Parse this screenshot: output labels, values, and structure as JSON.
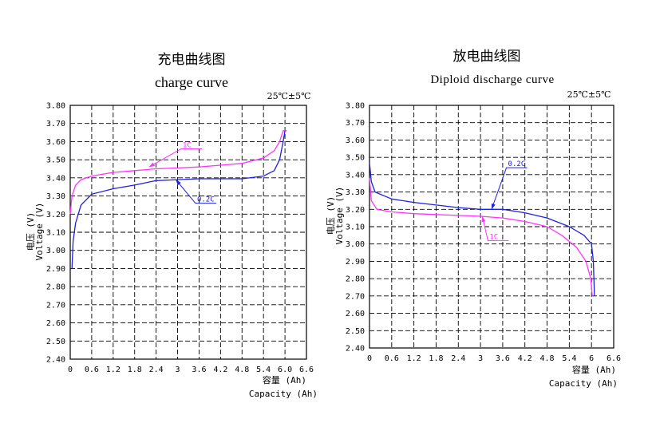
{
  "chart_data": [
    {
      "type": "line",
      "title": "充电曲线图",
      "subtitle": "charge curve",
      "condition": "25℃±5℃",
      "ylabel_cn": "电压 (V)",
      "ylabel_en": "Voltage (V)",
      "xlabel_cn": "容量 (Ah)",
      "xlabel_en": "Capacity (Ah)",
      "xlim": [
        0,
        6.6
      ],
      "ylim": [
        2.4,
        3.8
      ],
      "x_ticks": [
        0,
        0.6,
        1.2,
        1.8,
        2.4,
        3.0,
        3.6,
        4.2,
        4.8,
        5.4,
        6.0,
        6.6
      ],
      "x_tick_labels": [
        "0",
        "0.6",
        "1.2",
        "1.8",
        "2.4",
        "3",
        "3.6",
        "4.2",
        "4.8",
        "5.4",
        "6.0",
        "6.6"
      ],
      "y_ticks": [
        2.4,
        2.5,
        2.6,
        2.7,
        2.8,
        2.9,
        3.0,
        3.1,
        3.2,
        3.3,
        3.4,
        3.5,
        3.6,
        3.7,
        3.8
      ],
      "y_tick_labels": [
        "2.40",
        "2.50",
        "2.60",
        "2.70",
        "2.80",
        "2.90",
        "3.00",
        "3.10",
        "3.20",
        "3.30",
        "3.40",
        "3.50",
        "3.60",
        "3.70",
        "3.80"
      ],
      "grid": true,
      "series": [
        {
          "name": "1C",
          "color": "#ff33ff",
          "points": [
            [
              0.0,
              3.2
            ],
            [
              0.05,
              3.3
            ],
            [
              0.15,
              3.36
            ],
            [
              0.3,
              3.39
            ],
            [
              0.6,
              3.41
            ],
            [
              1.2,
              3.43
            ],
            [
              1.8,
              3.44
            ],
            [
              2.4,
              3.45
            ],
            [
              3.0,
              3.455
            ],
            [
              3.6,
              3.46
            ],
            [
              4.2,
              3.47
            ],
            [
              4.8,
              3.48
            ],
            [
              5.4,
              3.51
            ],
            [
              5.7,
              3.55
            ],
            [
              5.85,
              3.6
            ],
            [
              5.95,
              3.66
            ],
            [
              6.05,
              3.66
            ]
          ],
          "label_anchor": [
            2.2,
            3.46
          ],
          "label_pos": [
            3.1,
            3.56
          ]
        },
        {
          "name": "0.2C",
          "color": "#2020e0",
          "points": [
            [
              0.05,
              2.9
            ],
            [
              0.08,
              3.05
            ],
            [
              0.15,
              3.15
            ],
            [
              0.3,
              3.25
            ],
            [
              0.6,
              3.31
            ],
            [
              1.2,
              3.34
            ],
            [
              1.8,
              3.36
            ],
            [
              2.4,
              3.385
            ],
            [
              3.0,
              3.39
            ],
            [
              3.6,
              3.395
            ],
            [
              4.2,
              3.395
            ],
            [
              4.8,
              3.395
            ],
            [
              5.4,
              3.41
            ],
            [
              5.7,
              3.44
            ],
            [
              5.85,
              3.5
            ],
            [
              5.95,
              3.6
            ],
            [
              6.0,
              3.66
            ]
          ],
          "label_anchor": [
            2.95,
            3.39
          ],
          "label_pos": [
            3.5,
            3.26
          ]
        }
      ]
    },
    {
      "type": "line",
      "title": "放电曲线图",
      "subtitle": "Diploid discharge curve",
      "condition": "25℃±5℃",
      "ylabel_cn": "电压 (V)",
      "ylabel_en": "Voltage (V)",
      "xlabel_cn": "容量 (Ah)",
      "xlabel_en": "Capacity (Ah)",
      "xlim": [
        0,
        6.6
      ],
      "ylim": [
        2.4,
        3.8
      ],
      "x_ticks": [
        0,
        0.6,
        1.2,
        1.8,
        2.4,
        3.0,
        3.6,
        4.2,
        4.8,
        5.4,
        6.0,
        6.6
      ],
      "x_tick_labels": [
        "0",
        "0.6",
        "1.2",
        "1.8",
        "2.4",
        "3",
        "3.6",
        "4.2",
        "4.8",
        "5.4",
        "6",
        "6.6"
      ],
      "y_ticks": [
        2.4,
        2.5,
        2.6,
        2.7,
        2.8,
        2.9,
        3.0,
        3.1,
        3.2,
        3.3,
        3.4,
        3.5,
        3.6,
        3.7,
        3.8
      ],
      "y_tick_labels": [
        "2.40",
        "2.50",
        "2.60",
        "2.70",
        "2.80",
        "2.90",
        "3.00",
        "3.10",
        "3.20",
        "3.30",
        "3.40",
        "3.50",
        "3.60",
        "3.70",
        "3.80"
      ],
      "grid": true,
      "series": [
        {
          "name": "0.2C",
          "color": "#2020e0",
          "points": [
            [
              0.0,
              3.47
            ],
            [
              0.05,
              3.36
            ],
            [
              0.15,
              3.3
            ],
            [
              0.6,
              3.26
            ],
            [
              1.2,
              3.24
            ],
            [
              1.8,
              3.225
            ],
            [
              2.4,
              3.21
            ],
            [
              3.0,
              3.2
            ],
            [
              3.6,
              3.2
            ],
            [
              4.2,
              3.18
            ],
            [
              4.8,
              3.15
            ],
            [
              5.4,
              3.1
            ],
            [
              5.8,
              3.05
            ],
            [
              6.0,
              3.0
            ],
            [
              6.05,
              2.9
            ],
            [
              6.08,
              2.7
            ]
          ],
          "label_anchor": [
            3.3,
            3.2
          ],
          "label_pos": [
            3.7,
            3.44
          ]
        },
        {
          "name": "1C",
          "color": "#ff33ff",
          "points": [
            [
              0.0,
              3.38
            ],
            [
              0.05,
              3.25
            ],
            [
              0.2,
              3.2
            ],
            [
              0.6,
              3.185
            ],
            [
              1.2,
              3.175
            ],
            [
              1.8,
              3.17
            ],
            [
              2.4,
              3.165
            ],
            [
              3.0,
              3.16
            ],
            [
              3.6,
              3.15
            ],
            [
              4.2,
              3.13
            ],
            [
              4.8,
              3.1
            ],
            [
              5.2,
              3.05
            ],
            [
              5.6,
              2.98
            ],
            [
              5.85,
              2.9
            ],
            [
              5.98,
              2.8
            ],
            [
              6.02,
              2.7
            ]
          ],
          "label_anchor": [
            3.05,
            3.16
          ],
          "label_pos": [
            3.2,
            3.02
          ]
        }
      ]
    }
  ]
}
